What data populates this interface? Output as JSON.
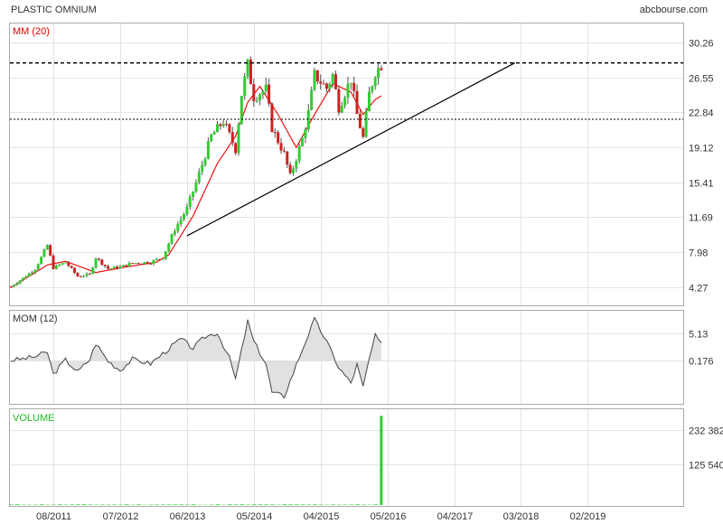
{
  "header": {
    "title": "PLASTIC OMNIUM",
    "source": "abcbourse.com"
  },
  "colors": {
    "up": "#33cc33",
    "down": "#cc2222",
    "ma": "#ee1111",
    "mom_fill": "#e1e1e1",
    "volume": "#33cc33",
    "grid": "#e4e4e4"
  },
  "chart_data": [
    {
      "type": "candlestick",
      "title": "PLASTIC OMNIUM",
      "legend": "MM (20)",
      "x_ticks": [
        "08/2011",
        "07/2012",
        "06/2013",
        "05/2014",
        "04/2015",
        "05/2016",
        "04/2017",
        "03/2018",
        "02/2019"
      ],
      "y_ticks": [
        "30.26",
        "26.55",
        "22.84",
        "19.12",
        "15.41",
        "11.69",
        "7.98",
        "4.27"
      ],
      "ylim": [
        2.5,
        32.0
      ],
      "price_path": [
        [
          "2011-01",
          4.3
        ],
        [
          "2011-03",
          5.2
        ],
        [
          "2011-05",
          6.2
        ],
        [
          "2011-06",
          7.4
        ],
        [
          "2011-07",
          8.7
        ],
        [
          "2011-08",
          6.3
        ],
        [
          "2011-10",
          6.9
        ],
        [
          "2011-12",
          5.4
        ],
        [
          "2012-02",
          5.6
        ],
        [
          "2012-03",
          7.4
        ],
        [
          "2012-05",
          6.2
        ],
        [
          "2012-07",
          6.4
        ],
        [
          "2012-09",
          6.8
        ],
        [
          "2012-12",
          6.9
        ],
        [
          "2013-02",
          7.4
        ],
        [
          "2013-04",
          10.4
        ],
        [
          "2013-06",
          12.6
        ],
        [
          "2013-08",
          16.3
        ],
        [
          "2013-10",
          20.3
        ],
        [
          "2013-12",
          21.9
        ],
        [
          "2014-02",
          18.9
        ],
        [
          "2014-03",
          24.8
        ],
        [
          "2014-04",
          27.9
        ],
        [
          "2014-05",
          24.5
        ],
        [
          "2014-07",
          25.3
        ],
        [
          "2014-08",
          21.2
        ],
        [
          "2014-10",
          18.4
        ],
        [
          "2014-11",
          16.0
        ],
        [
          "2015-01",
          20.0
        ],
        [
          "2015-02",
          22.8
        ],
        [
          "2015-03",
          26.8
        ],
        [
          "2015-05",
          25.4
        ],
        [
          "2015-06",
          26.8
        ],
        [
          "2015-07",
          23.4
        ],
        [
          "2015-09",
          26.4
        ],
        [
          "2015-10",
          22.6
        ],
        [
          "2015-11",
          20.1
        ],
        [
          "2015-12",
          24.8
        ],
        [
          "2016-01",
          27.1
        ],
        [
          "2016-02",
          27.9
        ]
      ],
      "moving_average": [
        [
          "2011-01",
          4.2
        ],
        [
          "2011-07",
          6.6
        ],
        [
          "2011-10",
          7.0
        ],
        [
          "2012-03",
          5.8
        ],
        [
          "2012-08",
          6.4
        ],
        [
          "2013-01",
          6.9
        ],
        [
          "2013-03",
          7.7
        ],
        [
          "2013-07",
          11.8
        ],
        [
          "2013-11",
          17.4
        ],
        [
          "2014-02",
          20.3
        ],
        [
          "2014-04",
          23.9
        ],
        [
          "2014-06",
          25.6
        ],
        [
          "2014-09",
          22.6
        ],
        [
          "2014-12",
          19.1
        ],
        [
          "2015-03",
          22.6
        ],
        [
          "2015-06",
          25.9
        ],
        [
          "2015-09",
          25.0
        ],
        [
          "2015-11",
          22.6
        ],
        [
          "2016-01",
          24.2
        ],
        [
          "2016-02",
          24.6
        ]
      ],
      "resistance_level": 28.1,
      "support_level": 22.1,
      "trendline": {
        "start": [
          "2013-06",
          9.7
        ],
        "end": [
          "2017-12",
          28.1
        ]
      }
    },
    {
      "type": "area",
      "title": "MOM (12)",
      "y_ticks": [
        "5.13",
        "0.176"
      ],
      "zero_line": 0.176,
      "ylim": [
        -7.5,
        9.0
      ],
      "values": [
        [
          "2011-01",
          0.2
        ],
        [
          "2011-03",
          0.5
        ],
        [
          "2011-05",
          0.9
        ],
        [
          "2011-07",
          1.7
        ],
        [
          "2011-08",
          -2.3
        ],
        [
          "2011-10",
          0.3
        ],
        [
          "2011-12",
          -1.9
        ],
        [
          "2012-02",
          0.4
        ],
        [
          "2012-03",
          3.3
        ],
        [
          "2012-05",
          0.1
        ],
        [
          "2012-07",
          -1.6
        ],
        [
          "2012-09",
          0.4
        ],
        [
          "2012-12",
          -0.4
        ],
        [
          "2013-03",
          2.3
        ],
        [
          "2013-05",
          4.1
        ],
        [
          "2013-07",
          2.4
        ],
        [
          "2013-09",
          4.5
        ],
        [
          "2013-11",
          5.2
        ],
        [
          "2014-01",
          0.6
        ],
        [
          "2014-02",
          -3.2
        ],
        [
          "2014-04",
          7.3
        ],
        [
          "2014-05",
          3.6
        ],
        [
          "2014-07",
          -0.4
        ],
        [
          "2014-08",
          -5.6
        ],
        [
          "2014-10",
          -6.3
        ],
        [
          "2014-11",
          -3.5
        ],
        [
          "2015-01",
          2.2
        ],
        [
          "2015-03",
          7.6
        ],
        [
          "2015-05",
          3.6
        ],
        [
          "2015-07",
          -1.1
        ],
        [
          "2015-09",
          -3.9
        ],
        [
          "2015-10",
          -0.6
        ],
        [
          "2015-11",
          -4.7
        ],
        [
          "2015-12",
          0.4
        ],
        [
          "2016-01",
          4.6
        ],
        [
          "2016-02",
          3.0
        ]
      ]
    },
    {
      "type": "bar",
      "title": "VOLUME",
      "y_ticks": [
        "232 382",
        "125 540"
      ],
      "ylim": [
        0,
        290000
      ],
      "typical_volume": 1500,
      "spike": [
        "2016-02",
        278000
      ]
    }
  ]
}
